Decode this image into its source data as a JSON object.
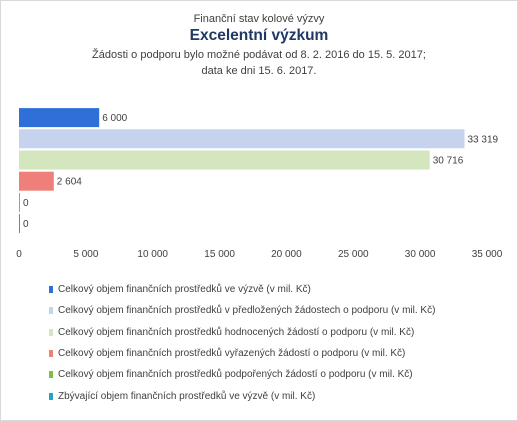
{
  "header": {
    "subtitle": "Finanční stav kolové výzvy",
    "title": "Excelentní výzkum",
    "note_line1": "Žádosti o podporu bylo možné  podávat od 8. 2. 2016 do 15. 5. 2017;",
    "note_line2": "data ke dni 15. 6. 2017."
  },
  "chart_data": {
    "type": "bar",
    "orientation": "horizontal",
    "xlim": [
      0,
      35000
    ],
    "x_ticks": [
      0,
      5000,
      10000,
      15000,
      20000,
      25000,
      30000,
      35000
    ],
    "x_tick_labels": [
      "0",
      "5 000",
      "10 000",
      "15 000",
      "20 000",
      "25 000",
      "30 000",
      "35 000"
    ],
    "grid": false,
    "legend_position": "bottom",
    "series": [
      {
        "name": "Celkový objem finančních prostředků ve výzvě (v mil. Kč)",
        "value": 6000,
        "label": "6 000",
        "color": "#2e6fd8"
      },
      {
        "name": "Celkový objem finančních prostředků v předložených žádostech o podporu (v mil. Kč)",
        "value": 33319,
        "label": "33 319",
        "color": "#c5d3ee"
      },
      {
        "name": "Celkový objem finančních prostředků hodnocených žádostí o podporu (v mil. Kč)",
        "value": 30716,
        "label": "30 716",
        "color": "#d3e6be"
      },
      {
        "name": "Celkový objem finančních prostředků vyřazených žádostí o podporu (v mil. Kč)",
        "value": 2604,
        "label": "2 604",
        "color": "#ee7f7b"
      },
      {
        "name": "Celkový objem finančních prostředků podpořených žádostí o podporu (v mil. Kč)",
        "value": 0,
        "label": "0",
        "color": "#7fbf3f"
      },
      {
        "name": "Zbývající objem finančních prostředků ve výzvě (v mil. Kč)",
        "value": 0,
        "label": "0",
        "color": "#21a6c9"
      }
    ]
  }
}
